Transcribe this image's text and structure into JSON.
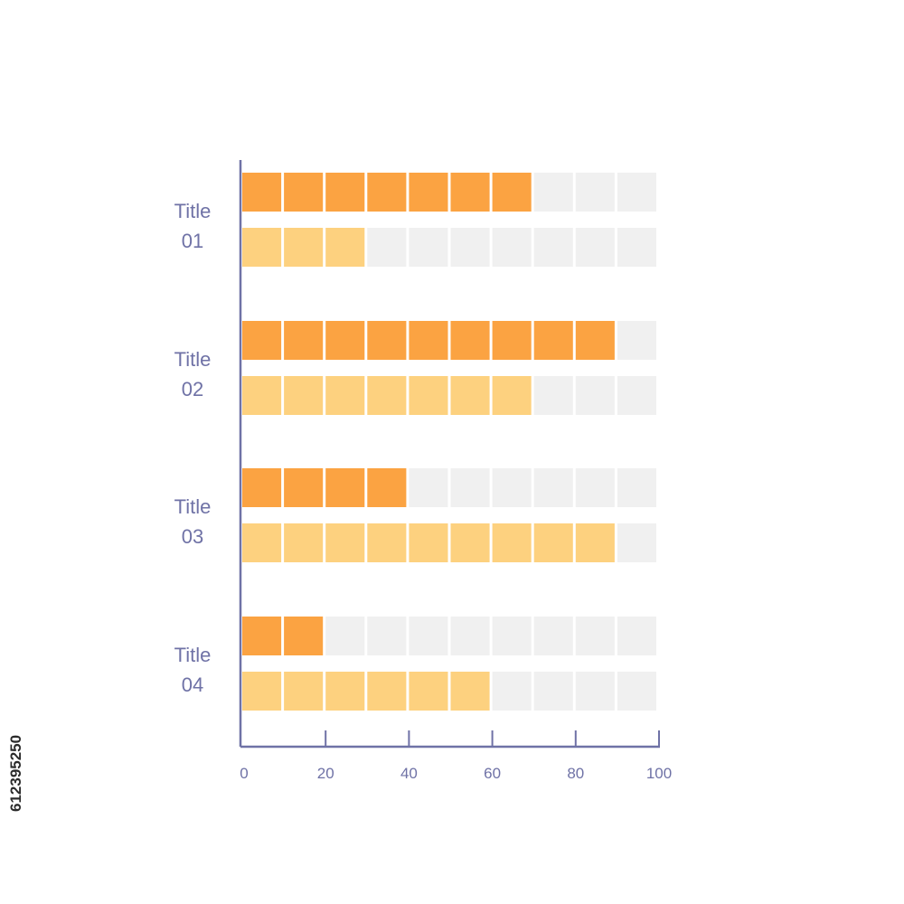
{
  "chart_data": {
    "type": "bar",
    "orientation": "horizontal",
    "title": "",
    "xlabel": "",
    "ylabel": "",
    "xlim": [
      0,
      100
    ],
    "x_ticks": [
      0,
      20,
      40,
      60,
      80,
      100
    ],
    "segment_step": 10,
    "grid": false,
    "categories": [
      {
        "line1": "Title",
        "line2": "01"
      },
      {
        "line1": "Title",
        "line2": "02"
      },
      {
        "line1": "Title",
        "line2": "03"
      },
      {
        "line1": "Title",
        "line2": "04"
      }
    ],
    "series": [
      {
        "values": [
          70,
          90,
          40,
          20
        ],
        "color": "#fba342"
      },
      {
        "values": [
          30,
          70,
          90,
          60
        ],
        "color": "#fdd17f"
      }
    ],
    "track_color": "#f0f0f0",
    "axis_color": "#6f72a6"
  },
  "watermark_id": "612395250"
}
